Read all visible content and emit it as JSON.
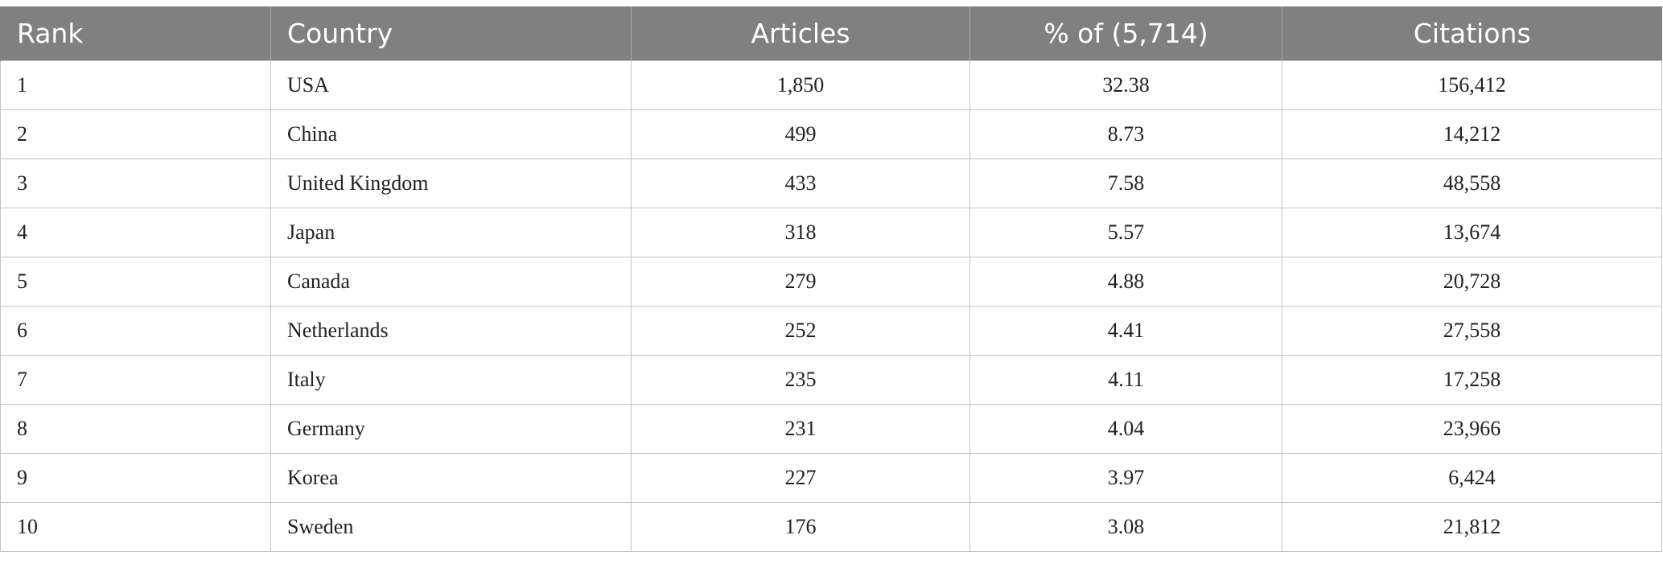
{
  "table": {
    "headers": {
      "rank": "Rank",
      "country": "Country",
      "articles": "Articles",
      "percent": "% of (5,714)",
      "citations": "Citations"
    },
    "rows": [
      {
        "rank": "1",
        "country": "USA",
        "articles": "1,850",
        "percent": "32.38",
        "citations": "156,412"
      },
      {
        "rank": "2",
        "country": "China",
        "articles": "499",
        "percent": "8.73",
        "citations": "14,212"
      },
      {
        "rank": "3",
        "country": "United Kingdom",
        "articles": "433",
        "percent": "7.58",
        "citations": "48,558"
      },
      {
        "rank": "4",
        "country": "Japan",
        "articles": "318",
        "percent": "5.57",
        "citations": "13,674"
      },
      {
        "rank": "5",
        "country": "Canada",
        "articles": "279",
        "percent": "4.88",
        "citations": "20,728"
      },
      {
        "rank": "6",
        "country": "Netherlands",
        "articles": "252",
        "percent": "4.41",
        "citations": "27,558"
      },
      {
        "rank": "7",
        "country": "Italy",
        "articles": "235",
        "percent": "4.11",
        "citations": "17,258"
      },
      {
        "rank": "8",
        "country": "Germany",
        "articles": "231",
        "percent": "4.04",
        "citations": "23,966"
      },
      {
        "rank": "9",
        "country": "Korea",
        "articles": "227",
        "percent": "3.97",
        "citations": "6,424"
      },
      {
        "rank": "10",
        "country": "Sweden",
        "articles": "176",
        "percent": "3.08",
        "citations": "21,812"
      }
    ]
  },
  "colors": {
    "header_background": "#7f807f",
    "header_text": "#ffffff",
    "grid_line": "#c3c3c3",
    "body_text": "#222222"
  }
}
